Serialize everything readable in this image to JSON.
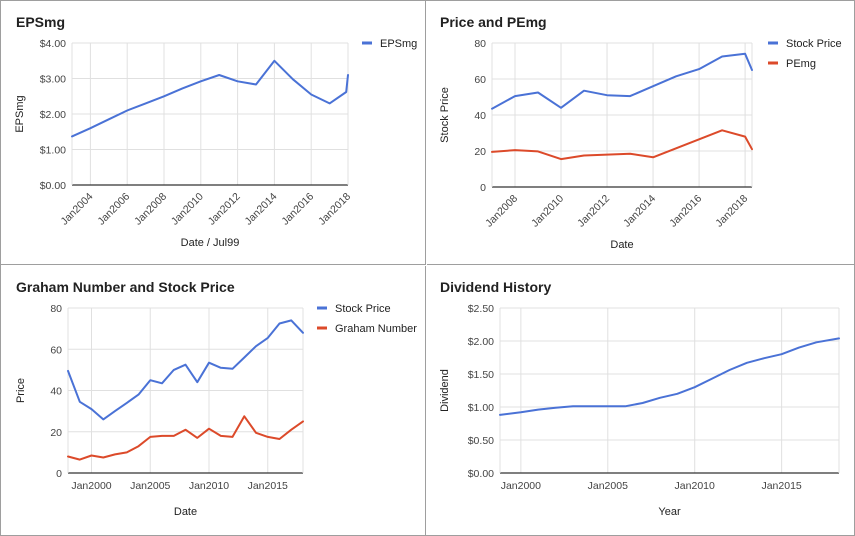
{
  "chart_data": [
    {
      "type": "line",
      "title": "EPSmg",
      "xlabel": "Date / Jul99",
      "ylabel": "EPSmg",
      "x_ticks": [
        2004,
        2006,
        2008,
        2010,
        2012,
        2014,
        2016,
        2018
      ],
      "x_tick_labels": [
        "Jan2004",
        "Jan2006",
        "Jan2008",
        "Jan2010",
        "Jan2012",
        "Jan2014",
        "Jan2016",
        "Jan2018"
      ],
      "xlim": [
        2003.0,
        2018.0
      ],
      "y_ticks": [
        0,
        1,
        2,
        3,
        4
      ],
      "y_tick_labels": [
        "$0.00",
        "$1.00",
        "$2.00",
        "$3.00",
        "$4.00"
      ],
      "ylim": [
        0,
        4
      ],
      "grid": true,
      "legend": "top-right",
      "series": [
        {
          "name": "EPSmg",
          "color": "#4a72d6",
          "x": [
            2003.0,
            2004.0,
            2005.0,
            2006.0,
            2007.0,
            2008.0,
            2009.0,
            2010.0,
            2011.0,
            2012.0,
            2013.0,
            2014.0,
            2015.0,
            2016.0,
            2017.0,
            2017.9,
            2018.0
          ],
          "values": [
            1.37,
            1.6,
            1.85,
            2.1,
            2.3,
            2.5,
            2.72,
            2.92,
            3.1,
            2.92,
            2.83,
            3.5,
            2.98,
            2.55,
            2.3,
            2.62,
            3.1
          ]
        }
      ]
    },
    {
      "type": "line",
      "title": "Price and PEmg",
      "xlabel": "Date",
      "ylabel": "Stock Price",
      "x_ticks": [
        2008,
        2010,
        2012,
        2014,
        2016,
        2018
      ],
      "x_tick_labels": [
        "Jan2008",
        "Jan2010",
        "Jan2012",
        "Jan2014",
        "Jan2016",
        "Jan2018"
      ],
      "xlim": [
        2007.0,
        2018.3
      ],
      "y_ticks": [
        0,
        20,
        40,
        60,
        80
      ],
      "y_tick_labels": [
        "0",
        "20",
        "40",
        "60",
        "80"
      ],
      "ylim": [
        0,
        80
      ],
      "grid": true,
      "legend": "top-right",
      "series": [
        {
          "name": "Stock Price",
          "color": "#4a72d6",
          "x": [
            2007.0,
            2008.0,
            2009.0,
            2010.0,
            2011.0,
            2012.0,
            2013.0,
            2014.0,
            2015.0,
            2016.0,
            2017.0,
            2018.0,
            2018.3
          ],
          "values": [
            43.5,
            50.5,
            52.5,
            44,
            53.5,
            51,
            50.5,
            56,
            61.5,
            65.5,
            72.5,
            74,
            65
          ]
        },
        {
          "name": "PEmg",
          "color": "#dc4a2a",
          "x": [
            2007.0,
            2008.0,
            2009.0,
            2010.0,
            2011.0,
            2012.0,
            2013.0,
            2014.0,
            2015.0,
            2016.0,
            2017.0,
            2018.0,
            2018.3
          ],
          "values": [
            19.5,
            20.5,
            19.8,
            15.5,
            17.5,
            18,
            18.5,
            16.5,
            21.5,
            26.5,
            31.5,
            28,
            21
          ]
        }
      ]
    },
    {
      "type": "line",
      "title": "Graham Number and Stock Price",
      "xlabel": "Date",
      "ylabel": "Price",
      "x_ticks": [
        2000,
        2005,
        2010,
        2015
      ],
      "x_tick_labels": [
        "Jan2000",
        "Jan2005",
        "Jan2010",
        "Jan2015"
      ],
      "xlim": [
        1998.0,
        2018.0
      ],
      "y_ticks": [
        0,
        20,
        40,
        60,
        80
      ],
      "y_tick_labels": [
        "0",
        "20",
        "40",
        "60",
        "80"
      ],
      "ylim": [
        0,
        80
      ],
      "grid": true,
      "legend": "top-right",
      "series": [
        {
          "name": "Stock Price",
          "color": "#4a72d6",
          "x": [
            1998.0,
            1999.0,
            2000.0,
            2001.0,
            2002.0,
            2003.0,
            2004.0,
            2005.0,
            2006.0,
            2007.0,
            2008.0,
            2009.0,
            2010.0,
            2011.0,
            2012.0,
            2013.0,
            2014.0,
            2015.0,
            2016.0,
            2017.0,
            2018.0
          ],
          "values": [
            49.5,
            34.5,
            31,
            26,
            30,
            34,
            38,
            45,
            43.5,
            50,
            52.5,
            44,
            53.5,
            51,
            50.5,
            56,
            61.5,
            65.5,
            72.5,
            74,
            68
          ]
        },
        {
          "name": "Graham Number",
          "color": "#dc4a2a",
          "x": [
            1998.0,
            1999.0,
            2000.0,
            2001.0,
            2002.0,
            2003.0,
            2004.0,
            2005.0,
            2006.0,
            2007.0,
            2008.0,
            2009.0,
            2010.0,
            2011.0,
            2012.0,
            2013.0,
            2014.0,
            2015.0,
            2016.0,
            2017.0,
            2018.0
          ],
          "values": [
            8,
            6.5,
            8.5,
            7.5,
            9,
            10,
            13,
            17.5,
            18,
            18,
            21,
            17,
            21.5,
            18,
            17.5,
            27.5,
            19.5,
            17.5,
            16.5,
            21,
            25
          ]
        }
      ]
    },
    {
      "type": "line",
      "title": "Dividend History",
      "xlabel": "Year",
      "ylabel": "Dividend",
      "x_ticks": [
        2000,
        2005,
        2010,
        2015
      ],
      "x_tick_labels": [
        "Jan2000",
        "Jan2005",
        "Jan2010",
        "Jan2015"
      ],
      "xlim": [
        1998.8,
        2018.3
      ],
      "y_ticks": [
        0,
        0.5,
        1.0,
        1.5,
        2.0,
        2.5
      ],
      "y_tick_labels": [
        "$0.00",
        "$0.50",
        "$1.00",
        "$1.50",
        "$2.00",
        "$2.50"
      ],
      "ylim": [
        0,
        2.5
      ],
      "grid": true,
      "legend": "none",
      "series": [
        {
          "name": "",
          "color": "#4a72d6",
          "x": [
            1998.8,
            2000.0,
            2001.0,
            2002.0,
            2003.0,
            2004.0,
            2005.0,
            2006.0,
            2007.0,
            2008.0,
            2009.0,
            2010.0,
            2011.0,
            2012.0,
            2013.0,
            2014.0,
            2015.0,
            2016.0,
            2017.0,
            2018.3
          ],
          "values": [
            0.88,
            0.92,
            0.96,
            0.99,
            1.01,
            1.01,
            1.01,
            1.01,
            1.06,
            1.14,
            1.2,
            1.3,
            1.43,
            1.56,
            1.67,
            1.74,
            1.8,
            1.9,
            1.98,
            2.04
          ]
        }
      ]
    }
  ]
}
